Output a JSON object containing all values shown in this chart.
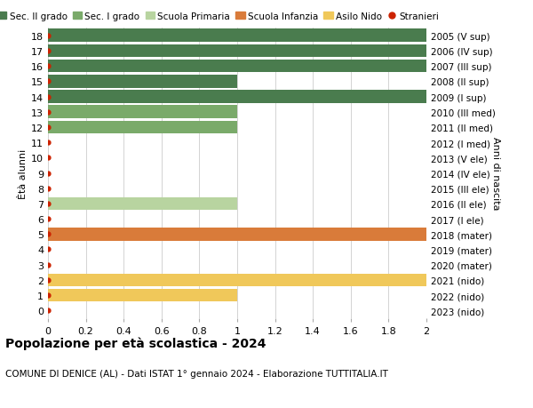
{
  "ages": [
    18,
    17,
    16,
    15,
    14,
    13,
    12,
    11,
    10,
    9,
    8,
    7,
    6,
    5,
    4,
    3,
    2,
    1,
    0
  ],
  "years": [
    "2005 (V sup)",
    "2006 (IV sup)",
    "2007 (III sup)",
    "2008 (II sup)",
    "2009 (I sup)",
    "2010 (III med)",
    "2011 (II med)",
    "2012 (I med)",
    "2013 (V ele)",
    "2014 (IV ele)",
    "2015 (III ele)",
    "2016 (II ele)",
    "2017 (I ele)",
    "2018 (mater)",
    "2019 (mater)",
    "2020 (mater)",
    "2021 (nido)",
    "2022 (nido)",
    "2023 (nido)"
  ],
  "values": [
    2.0,
    2.0,
    2.0,
    1.0,
    2.0,
    1.0,
    1.0,
    0.0,
    0.0,
    0.0,
    0.0,
    1.0,
    0.0,
    2.0,
    0.0,
    0.0,
    2.0,
    1.0,
    0.0
  ],
  "bar_colors": [
    "#4a7c4e",
    "#4a7c4e",
    "#4a7c4e",
    "#4a7c4e",
    "#4a7c4e",
    "#7aaa6a",
    "#7aaa6a",
    "#7aaa6a",
    "#b8d4a0",
    "#b8d4a0",
    "#b8d4a0",
    "#b8d4a0",
    "#b8d4a0",
    "#d97b3a",
    "#d97b3a",
    "#d97b3a",
    "#f0c85a",
    "#f0c85a",
    "#f0c85a"
  ],
  "stranieri_dots": [
    18,
    17,
    16,
    15,
    14,
    13,
    12,
    11,
    10,
    9,
    8,
    7,
    6,
    5,
    4,
    3,
    2,
    1,
    0
  ],
  "legend_labels": [
    "Sec. II grado",
    "Sec. I grado",
    "Scuola Primaria",
    "Scuola Infanzia",
    "Asilo Nido",
    "Stranieri"
  ],
  "legend_colors": [
    "#4a7c4e",
    "#7aaa6a",
    "#b8d4a0",
    "#d97b3a",
    "#f0c85a",
    "#cc2200"
  ],
  "xlim": [
    0,
    2.0
  ],
  "xticks": [
    0,
    0.2,
    0.4,
    0.6,
    0.8,
    1.0,
    1.2,
    1.4,
    1.6,
    1.8,
    2.0
  ],
  "ylabel_left": "Ètà alunni",
  "ylabel_right": "Anni di nascita",
  "title": "Popolazione per età scolastica - 2024",
  "subtitle": "COMUNE DI DENICE (AL) - Dati ISTAT 1° gennaio 2024 - Elaborazione TUTTITALIA.IT",
  "background_color": "#ffffff",
  "grid_color": "#cccccc",
  "bar_height": 0.85
}
